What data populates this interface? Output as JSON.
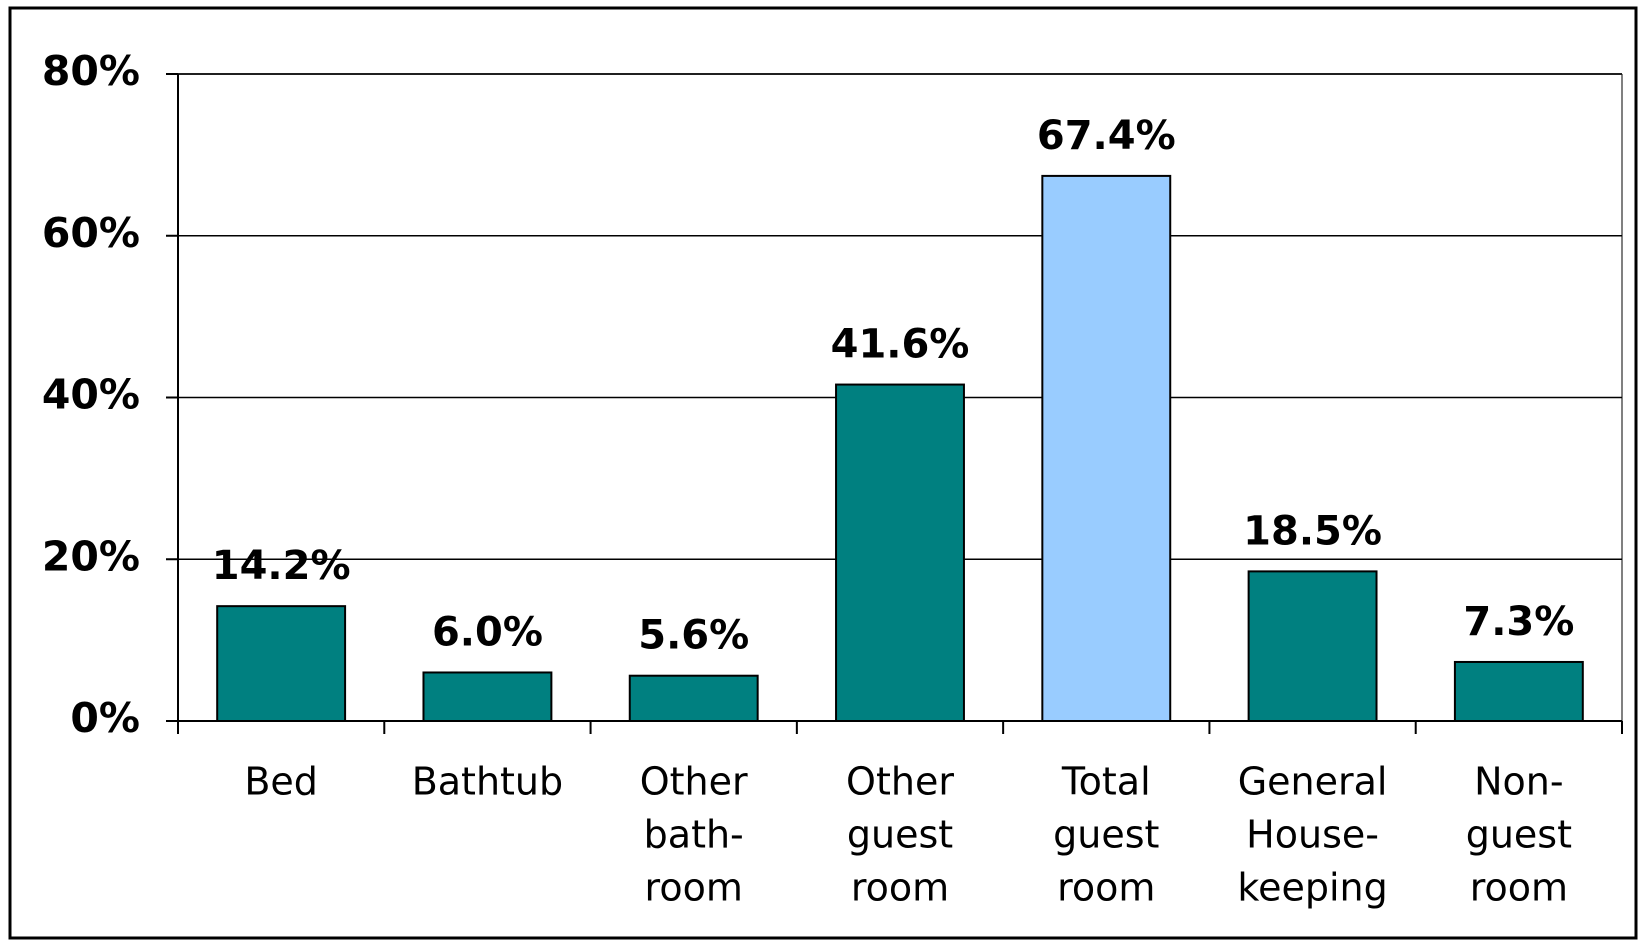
{
  "chart_data": {
    "type": "bar",
    "categories": [
      [
        "Bed"
      ],
      [
        "Bathtub"
      ],
      [
        "Other",
        "bath-",
        "room"
      ],
      [
        "Other",
        "guest",
        "room"
      ],
      [
        "Total",
        "guest",
        "room"
      ],
      [
        "General",
        "House-",
        "keeping"
      ],
      [
        "Non-",
        "guest",
        "room"
      ]
    ],
    "values": [
      14.2,
      6.0,
      5.6,
      41.6,
      67.4,
      18.5,
      7.3
    ],
    "value_labels": [
      "14.2%",
      "6.0%",
      "5.6%",
      "41.6%",
      "67.4%",
      "18.5%",
      "7.3%"
    ],
    "colors": [
      "#008080",
      "#008080",
      "#008080",
      "#008080",
      "#99ccff",
      "#008080",
      "#008080"
    ],
    "ylim": [
      0,
      80
    ],
    "yticks": [
      {
        "value": 0,
        "label": "0%"
      },
      {
        "value": 20,
        "label": "20%"
      },
      {
        "value": 40,
        "label": "40%"
      },
      {
        "value": 60,
        "label": "60%"
      },
      {
        "value": 80,
        "label": "80%"
      }
    ],
    "grid": true
  }
}
